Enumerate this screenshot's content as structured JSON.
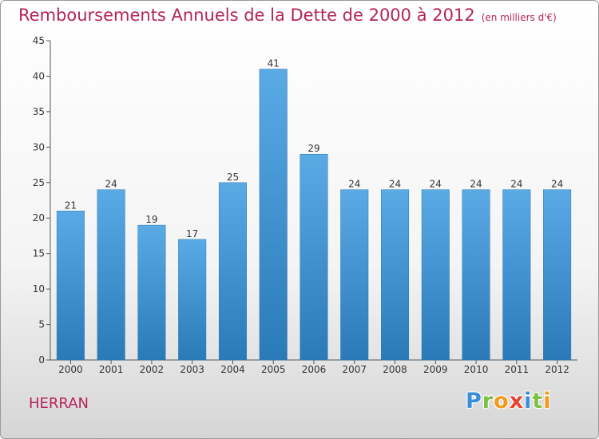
{
  "title": "Remboursements Annuels de la Dette de 2000 à 2012",
  "unit": "(en milliers d'€)",
  "commune": "HERRAN",
  "logo": {
    "letters": [
      "P",
      "r",
      "o",
      "x",
      "i",
      "t",
      "i"
    ],
    "colors": [
      "#3a8fd6",
      "#7cc242",
      "#f39a1e",
      "#e8432e",
      "#3a8fd6",
      "#7cc242",
      "#f39a1e"
    ]
  },
  "colors": {
    "bar_top": "#5aaae6",
    "bar_bottom": "#2a7ab8",
    "title": "#b5245a"
  },
  "chart_data": {
    "type": "bar",
    "title": "Remboursements Annuels de la Dette de 2000 à 2012",
    "xlabel": "",
    "ylabel": "",
    "categories": [
      "2000",
      "2001",
      "2002",
      "2003",
      "2004",
      "2005",
      "2006",
      "2007",
      "2008",
      "2009",
      "2010",
      "2011",
      "2012"
    ],
    "values": [
      21,
      24,
      19,
      17,
      25,
      41,
      29,
      24,
      24,
      24,
      24,
      24,
      24
    ],
    "ylim": [
      0,
      45
    ],
    "yticks": [
      0,
      5,
      10,
      15,
      20,
      25,
      30,
      35,
      40,
      45
    ],
    "grid": false,
    "legend": "none"
  }
}
